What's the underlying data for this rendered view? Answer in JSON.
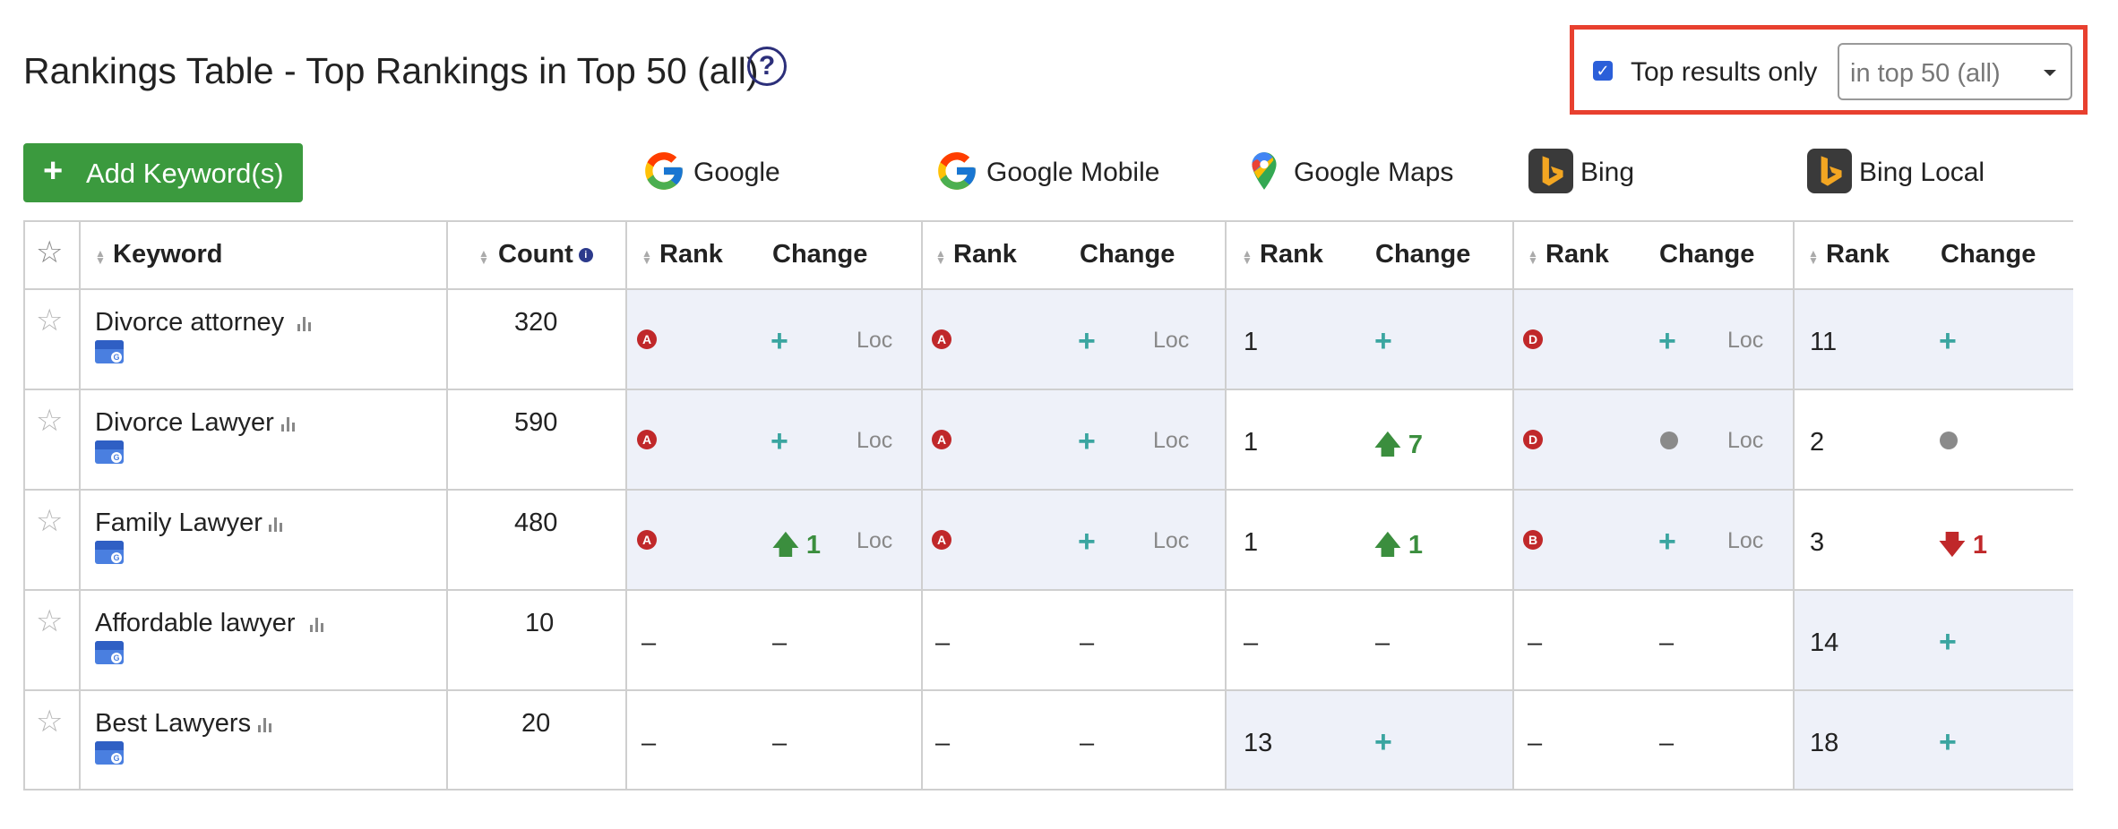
{
  "header": {
    "title": "Rankings Table - Top Rankings in Top 50 (all)",
    "help_icon": "?"
  },
  "filter": {
    "checkbox_checked": true,
    "label": "Top results only",
    "select_value": "in top 50 (all)",
    "highlight_color": "#e8402f"
  },
  "toolbar": {
    "add_label": "Add Keyword(s)",
    "add_color": "#3b9a3e"
  },
  "engines": [
    {
      "name": "Google",
      "icon": "google-icon"
    },
    {
      "name": "Google Mobile",
      "icon": "google-icon"
    },
    {
      "name": "Google Maps",
      "icon": "google-maps-pin-icon"
    },
    {
      "name": "Bing",
      "icon": "bing-icon"
    },
    {
      "name": "Bing Local",
      "icon": "bing-icon"
    }
  ],
  "columns": {
    "keyword": "Keyword",
    "count": "Count",
    "rank": "Rank",
    "change": "Change",
    "loc": "Loc"
  },
  "rows": [
    {
      "keyword": "Divorce attorney",
      "count": "320",
      "google": {
        "rank_badge": "A",
        "change": "+"
      },
      "google_mobile": {
        "rank_badge": "A",
        "change": "+"
      },
      "google_maps": {
        "rank": "1",
        "change": "+"
      },
      "bing": {
        "rank_badge": "D",
        "change": "+"
      },
      "bing_local": {
        "rank": "11",
        "change": "+"
      }
    },
    {
      "keyword": "Divorce Lawyer",
      "count": "590",
      "google": {
        "rank_badge": "A",
        "change": "+"
      },
      "google_mobile": {
        "rank_badge": "A",
        "change": "+"
      },
      "google_maps": {
        "rank": "1",
        "change": "7"
      },
      "bing": {
        "rank_badge": "D",
        "change": "•"
      },
      "bing_local": {
        "rank": "2",
        "change": "•"
      }
    },
    {
      "keyword": "Family Lawyer",
      "count": "480",
      "google": {
        "rank_badge": "A",
        "change": "1"
      },
      "google_mobile": {
        "rank_badge": "A",
        "change": "+"
      },
      "google_maps": {
        "rank": "1",
        "change": "1"
      },
      "bing": {
        "rank_badge": "B",
        "change": "+"
      },
      "bing_local": {
        "rank": "3",
        "change": "1"
      }
    },
    {
      "keyword": "Affordable lawyer",
      "count": "10",
      "google": {
        "rank": "–",
        "change": "–"
      },
      "google_mobile": {
        "rank": "–",
        "change": "–"
      },
      "google_maps": {
        "rank": "–",
        "change": "–"
      },
      "bing": {
        "rank": "–",
        "change": "–"
      },
      "bing_local": {
        "rank": "14",
        "change": "+"
      }
    },
    {
      "keyword": "Best Lawyers",
      "count": "20",
      "google": {
        "rank": "–",
        "change": "–"
      },
      "google_mobile": {
        "rank": "–",
        "change": "–"
      },
      "google_maps": {
        "rank": "13",
        "change": "+"
      },
      "bing": {
        "rank": "–",
        "change": "–"
      },
      "bing_local": {
        "rank": "18",
        "change": "+"
      }
    }
  ],
  "colors": {
    "shade": "#eef1f9",
    "badge": "#c0282a",
    "plus": "#3aa5a0",
    "up": "#3b8e3e",
    "down": "#c0282a"
  }
}
